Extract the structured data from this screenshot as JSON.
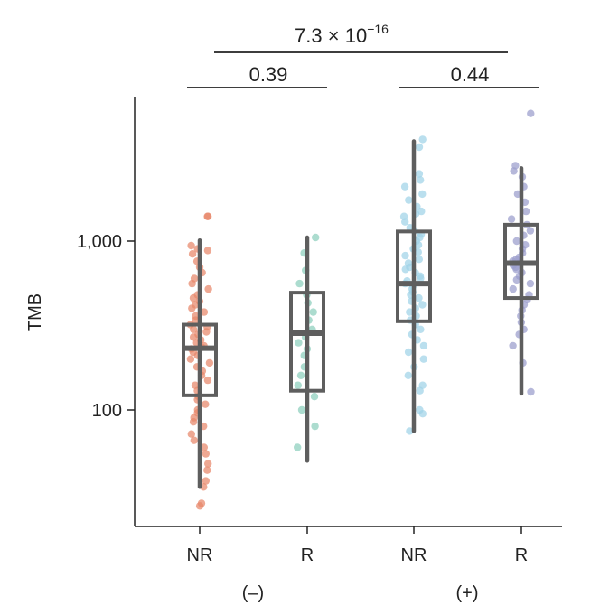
{
  "chart_data": {
    "type": "box",
    "ylabel": "TMB",
    "yscale": "log",
    "ylim": [
      19,
      7000
    ],
    "yticks": [
      {
        "value": 100,
        "label": "100"
      },
      {
        "value": 1000,
        "label": "1,000"
      }
    ],
    "categories": [
      "NR",
      "R",
      "NR",
      "R"
    ],
    "groups": [
      {
        "label": "(–)",
        "members": [
          0,
          1
        ]
      },
      {
        "label": "(+)",
        "members": [
          2,
          3
        ]
      }
    ],
    "boxes": [
      {
        "category": "NR",
        "group": "(–)",
        "color": "#e8876a",
        "whisker_low": 35,
        "q1": 122,
        "median": 232,
        "q3": 320,
        "whisker_high": 1010,
        "points": [
          1400,
          1400,
          940,
          900,
          880,
          840,
          760,
          700,
          650,
          600,
          560,
          520,
          480,
          460,
          440,
          420,
          400,
          380,
          360,
          340,
          320,
          310,
          300,
          290,
          280,
          270,
          260,
          250,
          240,
          235,
          230,
          220,
          210,
          200,
          190,
          180,
          170,
          160,
          150,
          140,
          130,
          120,
          115,
          108,
          100,
          96,
          90,
          85,
          80,
          72,
          66,
          60,
          55,
          48,
          44,
          38,
          35,
          28,
          27
        ]
      },
      {
        "category": "R",
        "group": "(–)",
        "color": "#8ccfbd",
        "whisker_low": 50,
        "q1": 130,
        "median": 285,
        "q3": 495,
        "whisker_high": 1050,
        "points": [
          1050,
          850,
          670,
          560,
          480,
          430,
          380,
          340,
          300,
          270,
          250,
          230,
          210,
          180,
          160,
          140,
          120,
          100,
          80,
          60
        ]
      },
      {
        "category": "NR",
        "group": "(+)",
        "color": "#9fd3e8",
        "whisker_low": 75,
        "q1": 335,
        "median": 560,
        "q3": 1140,
        "whisker_high": 3900,
        "points": [
          4000,
          3600,
          2500,
          2300,
          2100,
          1900,
          1750,
          1600,
          1500,
          1450,
          1400,
          1300,
          1200,
          1150,
          1100,
          1050,
          1000,
          950,
          900,
          860,
          820,
          780,
          740,
          700,
          680,
          650,
          620,
          600,
          580,
          560,
          540,
          520,
          500,
          480,
          460,
          440,
          420,
          400,
          380,
          360,
          340,
          320,
          300,
          280,
          260,
          240,
          220,
          200,
          180,
          160,
          140,
          130,
          100,
          95,
          75
        ]
      },
      {
        "category": "R",
        "group": "(+)",
        "color": "#9a9ccc",
        "whisker_low": 125,
        "q1": 460,
        "median": 740,
        "q3": 1250,
        "whisker_high": 2700,
        "points": [
          5700,
          2800,
          2600,
          2400,
          2100,
          1900,
          1700,
          1500,
          1350,
          1250,
          1150,
          1080,
          1000,
          950,
          900,
          850,
          800,
          780,
          760,
          740,
          720,
          700,
          680,
          650,
          620,
          590,
          560,
          520,
          480,
          450,
          420,
          390,
          360,
          330,
          300,
          280,
          240,
          190,
          128
        ]
      }
    ],
    "comparisons": [
      {
        "between": [
          "(–)",
          "(+)"
        ],
        "p_base": "7.3 × 10",
        "p_exp": "−16"
      },
      {
        "between": [
          "NR",
          "R"
        ],
        "group": "(–)",
        "p": "0.39"
      },
      {
        "between": [
          "NR",
          "R"
        ],
        "group": "(+)",
        "p": "0.44"
      }
    ]
  }
}
